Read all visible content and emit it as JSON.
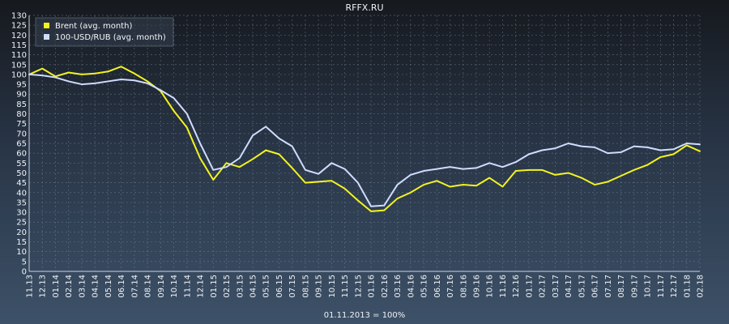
{
  "chart_data": {
    "type": "line",
    "title": "RFFX.RU",
    "footer": "01.11.2013 = 100%",
    "y_ticks": [
      0,
      5,
      10,
      15,
      20,
      25,
      30,
      35,
      40,
      45,
      50,
      55,
      60,
      65,
      70,
      75,
      80,
      85,
      90,
      95,
      100,
      105,
      110,
      115,
      120,
      125,
      130
    ],
    "ylim": [
      0,
      130
    ],
    "grid": true,
    "legend_position": "top-left",
    "categories": [
      "11.13",
      "12.13",
      "01.14",
      "02.14",
      "03.14",
      "04.14",
      "05.14",
      "06.14",
      "07.14",
      "08.14",
      "09.14",
      "10.14",
      "11.14",
      "12.14",
      "01.15",
      "02.15",
      "03.15",
      "04.15",
      "05.15",
      "06.15",
      "07.15",
      "08.15",
      "09.15",
      "10.15",
      "11.15",
      "12.15",
      "01.16",
      "02.16",
      "03.16",
      "04.16",
      "05.16",
      "06.16",
      "07.16",
      "08.16",
      "09.16",
      "10.16",
      "11.16",
      "12.16",
      "01.17",
      "02.17",
      "03.17",
      "04.17",
      "05.17",
      "06.17",
      "07.17",
      "08.17",
      "09.17",
      "10.17",
      "11.17",
      "12.17",
      "01.18",
      "02.18"
    ],
    "x_tick_labels": [
      "11.13",
      "12.13",
      "01.14",
      "02.14",
      "03.14",
      "04.14",
      "05.14",
      "06.14",
      "07.14",
      "08.14",
      "09.14",
      "10.14",
      "11.14",
      "12.14",
      "01.15",
      "02.15",
      "03.15",
      "04.15",
      "05.15",
      "06.15",
      "07.15",
      "08.15",
      "09.15",
      "10.15",
      "11.15",
      "12.15",
      "01.16",
      "02.16",
      "03.16",
      "04.16",
      "05.16",
      "06.16",
      "07.16",
      "08.16",
      "09.16",
      "10.16",
      "11.16",
      "12.16",
      "01.17",
      "02.17",
      "03.17",
      "04.17",
      "05.17",
      "06.17",
      "07.17",
      "08.17",
      "09.17",
      "10.17",
      "11.17",
      "12.17",
      "01.18",
      "02.18"
    ],
    "series": [
      {
        "name": "Brent (avg. month)",
        "color": "#f3f320",
        "values": [
          100,
          103,
          99,
          101,
          100,
          100.5,
          101.5,
          104,
          100.5,
          96.5,
          91.5,
          81.5,
          73,
          57.5,
          46.5,
          55,
          53,
          57,
          61.5,
          59.5,
          52.5,
          45,
          45.5,
          46,
          42,
          36,
          30.5,
          31,
          37,
          40,
          44,
          46,
          43,
          44,
          43.5,
          47.5,
          43,
          51,
          51.5,
          51.5,
          49,
          50,
          47.5,
          44,
          45.5,
          48.5,
          51.5,
          54,
          58,
          59.5,
          64,
          61
        ]
      },
      {
        "name": "100-USD/RUB (avg. month)",
        "color": "#cfdcff",
        "values": [
          100,
          99.5,
          98.5,
          96.5,
          95,
          95.5,
          96.5,
          97.5,
          97,
          95.5,
          92,
          88,
          80,
          65,
          51.5,
          53,
          57.5,
          69,
          73.5,
          67.5,
          63.5,
          51.5,
          49.5,
          55,
          52,
          45,
          33,
          33.5,
          44,
          49,
          51,
          52,
          53,
          52,
          52.5,
          55,
          53,
          55.5,
          59.5,
          61.5,
          62.5,
          65,
          63.5,
          63,
          60,
          60.5,
          63.5,
          63,
          61.5,
          62,
          65,
          64.5
        ]
      }
    ]
  }
}
